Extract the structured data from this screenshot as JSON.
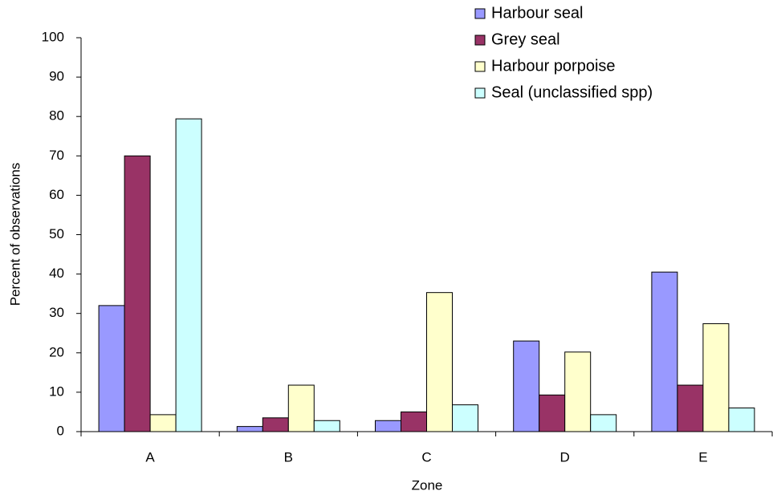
{
  "chart_data": {
    "type": "bar",
    "categories": [
      "A",
      "B",
      "C",
      "D",
      "E"
    ],
    "series": [
      {
        "name": "Harbour seal",
        "color": "#9999ff",
        "values": [
          32,
          1.3,
          2.8,
          23,
          40.5
        ]
      },
      {
        "name": "Grey seal",
        "color": "#993366",
        "values": [
          70,
          3.5,
          5,
          9.3,
          11.8
        ]
      },
      {
        "name": "Harbour porpoise",
        "color": "#ffffcc",
        "values": [
          4.3,
          11.8,
          35.3,
          20.2,
          27.4
        ]
      },
      {
        "name": "Seal (unclassified spp)",
        "color": "#ccffff",
        "values": [
          79.4,
          2.8,
          6.8,
          4.3,
          6
        ]
      }
    ],
    "x_label": "Zone",
    "y_label": "Percent of observations",
    "ylim": [
      0,
      100
    ],
    "yticks": [
      0,
      10,
      20,
      30,
      40,
      50,
      60,
      70,
      80,
      90,
      100
    ],
    "grid": false,
    "legend": "top-right"
  }
}
